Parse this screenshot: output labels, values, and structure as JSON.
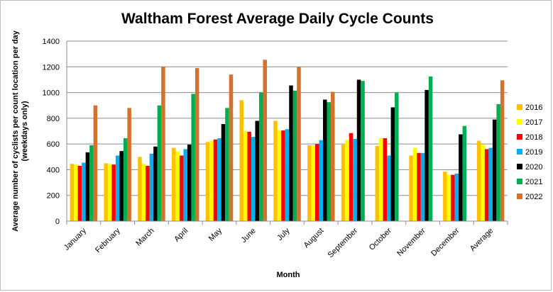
{
  "chart_data": {
    "type": "bar",
    "title": "Waltham Forest Average Daily Cycle Counts",
    "xlabel": "Month",
    "ylabel": [
      "Average number of cyclists per count location per day",
      "(weekdays only)"
    ],
    "ylim": [
      0,
      1400
    ],
    "yticks": [
      0,
      200,
      400,
      600,
      800,
      1000,
      1200,
      1400
    ],
    "grid": true,
    "legend_position": "right",
    "categories": [
      "January",
      "February",
      "March",
      "April",
      "May",
      "June",
      "July",
      "August",
      "September",
      "October",
      "November",
      "December",
      "Average"
    ],
    "series": [
      {
        "name": "2016",
        "color": "#FFC000",
        "values": [
          445,
          450,
          500,
          570,
          615,
          940,
          780,
          590,
          595,
          585,
          510,
          385,
          625
        ]
      },
      {
        "name": "2017",
        "color": "#FFFF00",
        "values": [
          440,
          445,
          445,
          540,
          625,
          700,
          705,
          590,
          630,
          645,
          570,
          360,
          595
        ]
      },
      {
        "name": "2018",
        "color": "#FF0000",
        "values": [
          430,
          440,
          430,
          510,
          635,
          695,
          705,
          600,
          685,
          645,
          530,
          360,
          560
        ]
      },
      {
        "name": "2019",
        "color": "#00B0F0",
        "values": [
          455,
          510,
          525,
          560,
          645,
          655,
          715,
          630,
          640,
          510,
          530,
          370,
          570
        ]
      },
      {
        "name": "2020",
        "color": "#000000",
        "values": [
          535,
          545,
          580,
          595,
          755,
          780,
          1055,
          945,
          1100,
          885,
          1020,
          675,
          790
        ]
      },
      {
        "name": "2021",
        "color": "#00B050",
        "values": [
          590,
          645,
          900,
          990,
          880,
          1000,
          1015,
          925,
          1090,
          1000,
          1125,
          740,
          910
        ]
      },
      {
        "name": "2022",
        "color": "#D4712A",
        "values": [
          900,
          880,
          1200,
          1190,
          1140,
          1255,
          1200,
          1005,
          null,
          null,
          null,
          null,
          1095
        ]
      }
    ]
  }
}
